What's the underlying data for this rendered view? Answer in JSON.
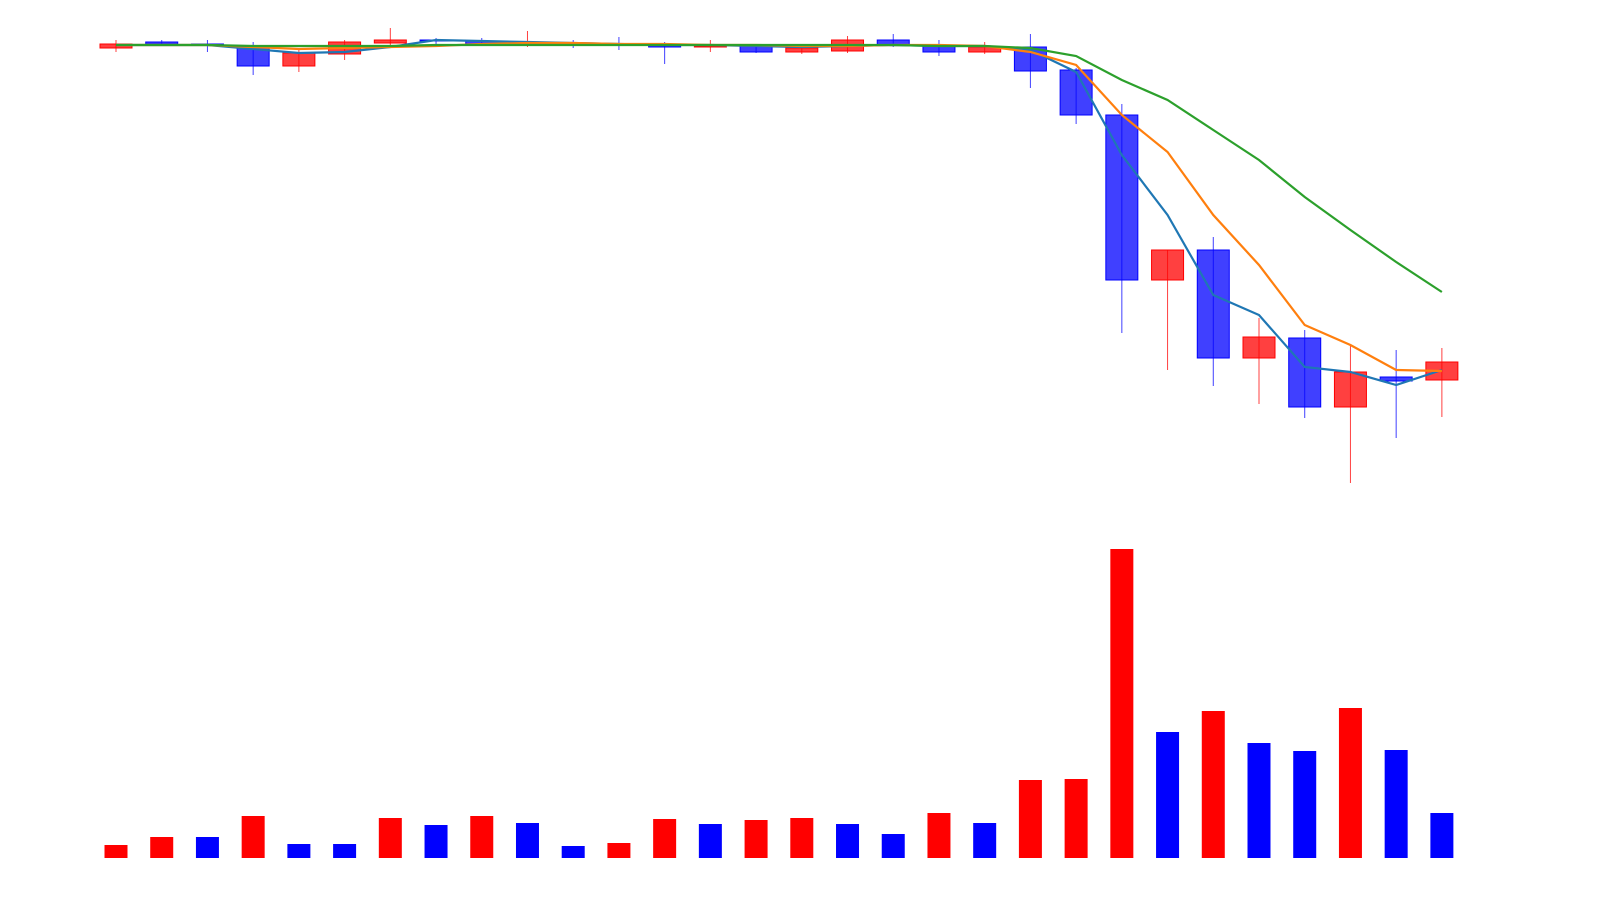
{
  "chart_data": [
    {
      "type": "candlestick",
      "ylim": [
        -3,
        120
      ],
      "up_color": "#ff0000",
      "down_color": "#0000ff",
      "open": [
        108,
        109.5,
        109,
        108.25,
        103.5,
        106.5,
        109.25,
        110,
        109.75,
        109.25,
        109.25,
        109,
        108.75,
        108.25,
        108.5,
        107,
        107.25,
        110,
        108.75,
        107,
        108.25,
        102.5,
        91.25,
        50,
        57.5,
        30.5,
        35.5,
        18.25,
        25.75,
        25
      ],
      "high": [
        110,
        110,
        110,
        109.5,
        107.5,
        110,
        113,
        110.5,
        110.5,
        112.25,
        110,
        110.75,
        109.5,
        110,
        109,
        108.75,
        111,
        111.5,
        110,
        109.5,
        111.5,
        103,
        94,
        57.5,
        60.75,
        40.5,
        37.5,
        33.75,
        32.5,
        33
      ],
      "low": [
        107,
        108.5,
        107,
        101.25,
        102,
        105,
        108.75,
        109,
        108.5,
        108.25,
        108,
        107.5,
        104,
        107,
        106.75,
        106.5,
        106.75,
        108.25,
        106,
        106.5,
        98,
        89,
        36.75,
        27.5,
        23.5,
        19,
        15.5,
        -0.75,
        10.5,
        15.75
      ],
      "close": [
        109,
        109,
        108.75,
        103.5,
        106.75,
        109.5,
        110,
        109.75,
        109,
        109.5,
        109,
        108.75,
        108.25,
        108.5,
        107,
        108,
        110,
        108.75,
        107,
        108.25,
        102.25,
        91.25,
        50,
        57.5,
        30.5,
        35.75,
        18.25,
        27,
        24.75,
        29.5
      ],
      "lines": [
        {
          "color": "#1f77b4",
          "values": [
            108.75,
            108.75,
            108.75,
            107.75,
            106.75,
            107,
            108.25,
            110,
            109.75,
            109.5,
            109.25,
            109,
            108.75,
            108.75,
            108.5,
            108.25,
            108.5,
            108.75,
            108.5,
            108.5,
            107.5,
            102,
            81.25,
            66.25,
            46.25,
            41.25,
            28.25,
            27,
            23.75,
            27.5
          ]
        },
        {
          "color": "#ff7f0e",
          "values": [
            108.75,
            108.75,
            108.75,
            108.25,
            107.75,
            108,
            108.25,
            108.5,
            109,
            109.25,
            109.25,
            109,
            109,
            108.75,
            108.75,
            108.5,
            108.5,
            108.75,
            108.75,
            108.5,
            107,
            103.75,
            91.25,
            82,
            66.25,
            53.75,
            38.75,
            33.75,
            27.5,
            27.25
          ]
        },
        {
          "color": "#2ca02c",
          "values": [
            108.75,
            108.75,
            108.75,
            108.5,
            108.5,
            108.5,
            108.5,
            108.75,
            108.75,
            108.75,
            108.75,
            108.75,
            108.75,
            108.75,
            108.75,
            108.75,
            108.75,
            108.75,
            108.5,
            108.5,
            108,
            106,
            100,
            95,
            87.5,
            80,
            70.75,
            62.5,
            54.5,
            47
          ]
        }
      ]
    },
    {
      "type": "bar",
      "ylim": [
        0,
        320
      ],
      "values": [
        13,
        21,
        21,
        42,
        14,
        14,
        40,
        33,
        42,
        35,
        12,
        15,
        39,
        34,
        38,
        40,
        34,
        24,
        45,
        35,
        78,
        79,
        309,
        126,
        147,
        115,
        107,
        150,
        108,
        45
      ],
      "colors": [
        "#ff0000",
        "#ff0000",
        "#0000ff",
        "#ff0000",
        "#0000ff",
        "#0000ff",
        "#ff0000",
        "#0000ff",
        "#ff0000",
        "#0000ff",
        "#0000ff",
        "#ff0000",
        "#ff0000",
        "#0000ff",
        "#ff0000",
        "#ff0000",
        "#0000ff",
        "#0000ff",
        "#ff0000",
        "#0000ff",
        "#ff0000",
        "#ff0000",
        "#ff0000",
        "#0000ff",
        "#ff0000",
        "#0000ff",
        "#0000ff",
        "#ff0000",
        "#0000ff",
        "#0000ff"
      ]
    }
  ]
}
